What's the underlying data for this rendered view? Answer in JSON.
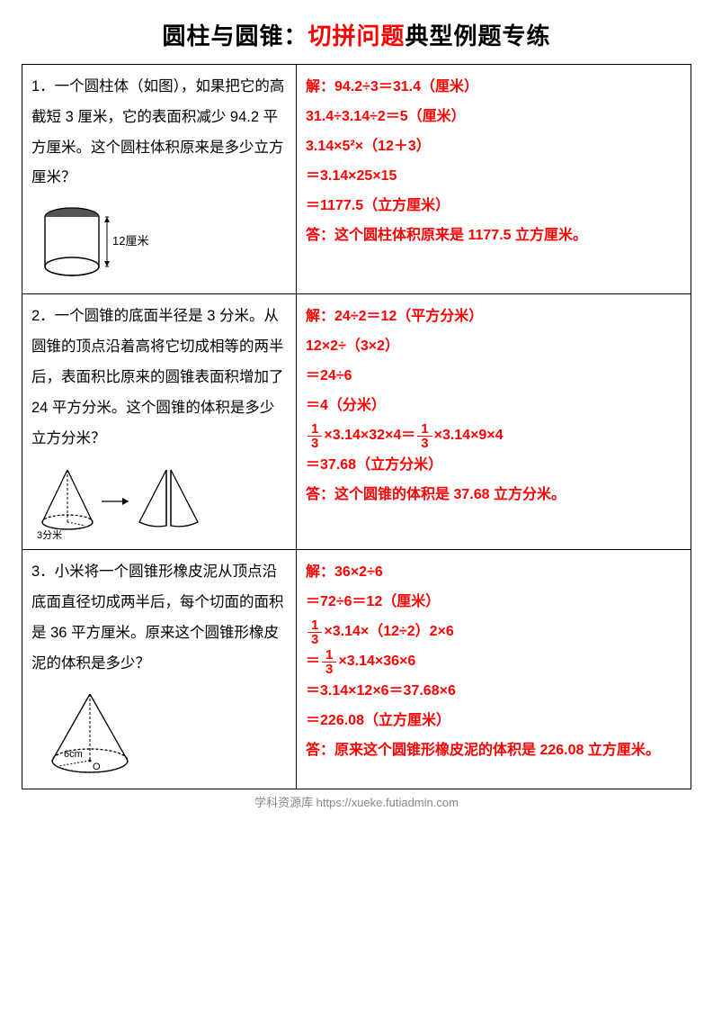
{
  "title": {
    "pre": "圆柱与圆锥：",
    "highlight": "切拼问题",
    "post": "典型例题专练"
  },
  "colors": {
    "answer": "#ff0000",
    "text": "#000000",
    "border": "#000000",
    "footer": "#888888",
    "background": "#ffffff"
  },
  "fonts": {
    "title_size": 26,
    "question_size": 16.5,
    "answer_size": 16
  },
  "problems": [
    {
      "question": "1．一个圆柱体（如图），如果把它的高截短 3 厘米，它的表面积减少 94.2 平方厘米。这个圆柱体积原来是多少立方厘米？",
      "diagram": {
        "type": "cylinder",
        "height_label": "12厘米"
      },
      "answer_lines": [
        "解：94.2÷3＝31.4（厘米）",
        "31.4÷3.14÷2＝5（厘米）",
        "3.14×5²×（12＋3）",
        "＝3.14×25×15",
        "＝1177.5（立方厘米）",
        "答：这个圆柱体积原来是 1177.5 立方厘米。"
      ]
    },
    {
      "question": "2．一个圆锥的底面半径是 3 分米。从圆锥的顶点沿着高将它切成相等的两半后，表面积比原来的圆锥表面积增加了 24 平方分米。这个圆锥的体积是多少立方分米？",
      "diagram": {
        "type": "cone_split",
        "radius_label": "3分米"
      },
      "answer_lines": [
        "解：24÷2＝12（平方分米）",
        "12×2÷（3×2）",
        "＝24÷6",
        "＝4（分米）",
        "{FRAC}×3.14×32×4＝{FRAC}×3.14×9×4",
        "＝37.68（立方分米）",
        "答：这个圆锥的体积是 37.68 立方分米。"
      ]
    },
    {
      "question": "3．小米将一个圆锥形橡皮泥从顶点沿底面直径切成两半后，每个切面的面积是 36 平方厘米。原来这个圆锥形橡皮泥的体积是多少？",
      "diagram": {
        "type": "cone_radius",
        "radius_label": "6cm",
        "center_label": "O"
      },
      "answer_lines": [
        "解：36×2÷6",
        "＝72÷6＝12（厘米）",
        "{FRAC}×3.14×（12÷2）2×6",
        "＝{FRAC}×3.14×36×6",
        "＝3.14×12×6＝37.68×6",
        "＝226.08（立方厘米）",
        "答：原来这个圆锥形橡皮泥的体积是 226.08 立方厘米。"
      ]
    }
  ],
  "fraction": {
    "num": "1",
    "den": "3"
  },
  "footer": "学科资源库 https://xueke.futiadmin.com"
}
